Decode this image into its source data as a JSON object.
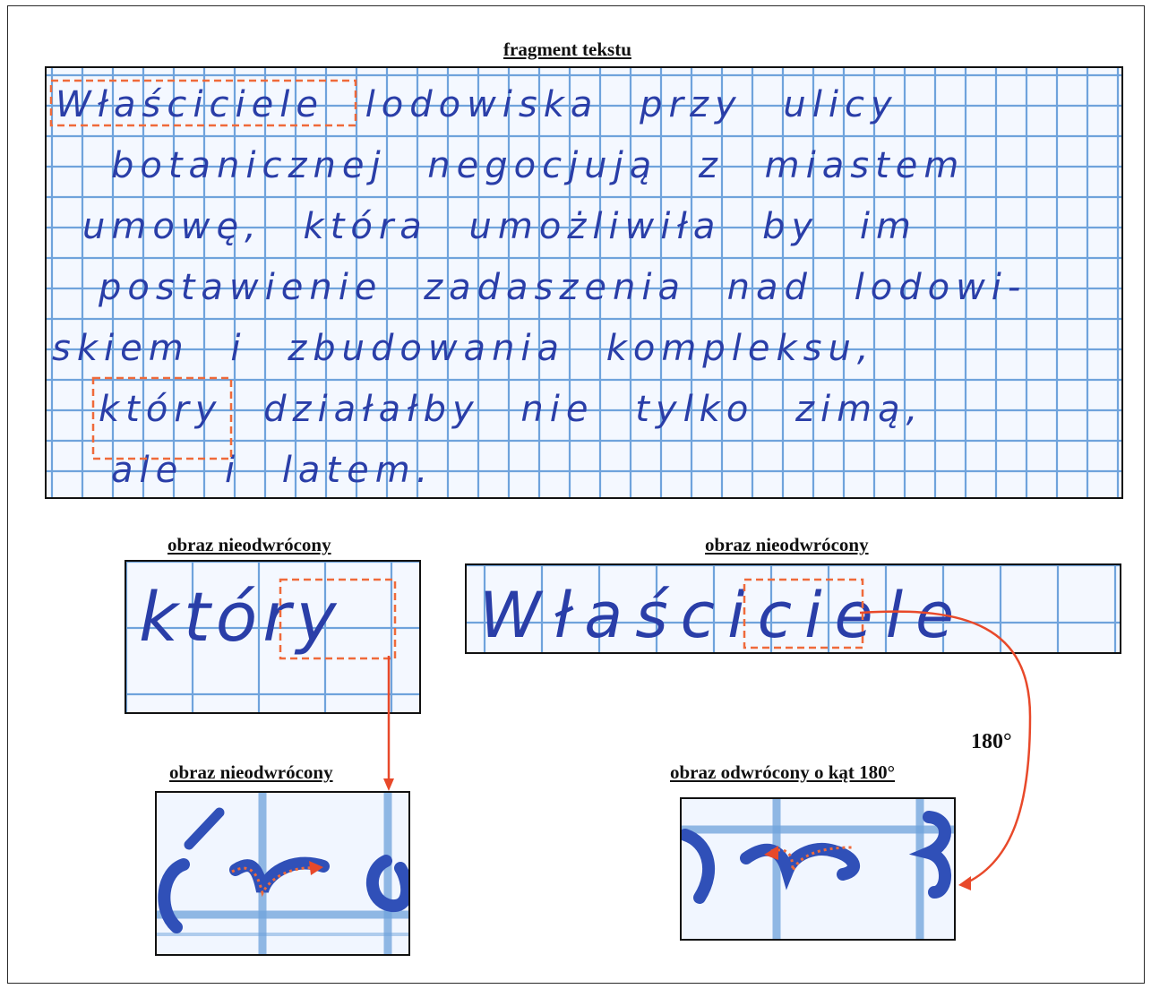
{
  "captions": {
    "main": "fragment tekstu",
    "crop_left": "obraz nieodwrócony",
    "crop_right": "obraz nieodwrócony",
    "zoom_left": "obraz nieodwrócony",
    "zoom_right": "obraz odwrócony o kąt 180°"
  },
  "rotation_label": "180°",
  "handwriting": {
    "line1": [
      "Właściciele",
      "lodowiska",
      "przy",
      "ulicy"
    ],
    "line2": [
      "botanicznej",
      "negocjują",
      "z",
      "miastem"
    ],
    "line3": [
      "umowę,",
      "która",
      "umożliwiła",
      "by",
      "im"
    ],
    "line4": [
      "postawienie",
      "zadaszenia",
      "nad",
      "lodowi-"
    ],
    "line5": [
      "skiem",
      "i",
      "zbudowania",
      "kompleksu,"
    ],
    "line6": [
      "który",
      "działałby",
      "nie",
      "tylko",
      "zimą,"
    ],
    "line7": [
      "ale",
      "i",
      "latem."
    ]
  },
  "crop_words": {
    "left": "który",
    "right": "Właściciele"
  },
  "colors": {
    "grid": "#6fa3dc",
    "ink": "#2a3ea8",
    "highlight": "#ef6a3a",
    "border": "#111111"
  }
}
